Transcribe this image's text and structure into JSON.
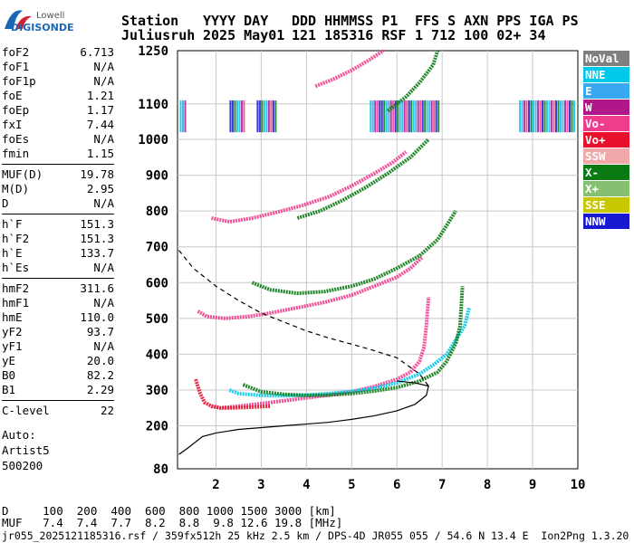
{
  "logo": {
    "top": "Lowell",
    "bottom": "DIGISONDE"
  },
  "header": {
    "labels": [
      "Station",
      "YYYY DAY",
      "DDD HHMMSS P1",
      "FFS S AXN PPS IGA PS"
    ],
    "values": [
      "Juliusruh",
      "2025 May01",
      "121 185316 RSF",
      "1 712 100 02+ 34"
    ]
  },
  "params": [
    [
      {
        "k": "foF2",
        "v": "6.713"
      },
      {
        "k": "foF1",
        "v": "N/A"
      },
      {
        "k": "foF1p",
        "v": "N/A"
      },
      {
        "k": "foE",
        "v": "1.21"
      },
      {
        "k": "foEp",
        "v": "1.17"
      },
      {
        "k": "fxI",
        "v": "7.44"
      },
      {
        "k": "foEs",
        "v": "N/A"
      },
      {
        "k": "fmin",
        "v": "1.15"
      }
    ],
    [
      {
        "k": "MUF(D)",
        "v": "19.78"
      },
      {
        "k": "M(D)",
        "v": "2.95"
      },
      {
        "k": "D",
        "v": "N/A"
      }
    ],
    [
      {
        "k": "h`F",
        "v": "151.3"
      },
      {
        "k": "h`F2",
        "v": "151.3"
      },
      {
        "k": "h`E",
        "v": "133.7"
      },
      {
        "k": "h`Es",
        "v": "N/A"
      }
    ],
    [
      {
        "k": "hmF2",
        "v": "311.6"
      },
      {
        "k": "hmF1",
        "v": "N/A"
      },
      {
        "k": "hmE",
        "v": "110.0"
      },
      {
        "k": "yF2",
        "v": "93.7"
      },
      {
        "k": "yF1",
        "v": "N/A"
      },
      {
        "k": "yE",
        "v": "20.0"
      },
      {
        "k": "B0",
        "v": "82.2"
      },
      {
        "k": "B1",
        "v": "2.29"
      }
    ],
    [
      {
        "k": "C-level",
        "v": "22"
      }
    ]
  ],
  "auto": {
    "line1": "Auto:",
    "line2": "Artist5",
    "line3": "500200"
  },
  "legend": [
    {
      "label": "NoVal",
      "color": "#808080"
    },
    {
      "label": "NNE",
      "color": "#00c8e8"
    },
    {
      "label": "E",
      "color": "#3aa8f0"
    },
    {
      "label": "W",
      "color": "#b0188a"
    },
    {
      "label": "Vo-",
      "color": "#f03c8c"
    },
    {
      "label": "Vo+",
      "color": "#e8102c"
    },
    {
      "label": "SSW",
      "color": "#f0a8a8"
    },
    {
      "label": "X-",
      "color": "#0a7a12"
    },
    {
      "label": "X+",
      "color": "#84c070"
    },
    {
      "label": "SSE",
      "color": "#c8c800"
    },
    {
      "label": "NNW",
      "color": "#1818d0"
    }
  ],
  "footer": {
    "line1": "D     100  200  400  600  800 1000 1500 3000 [km]",
    "line2": "MUF   7.4  7.4  7.7  8.2  8.8  9.8 12.6 19.8 [MHz]",
    "line3": "jr055_2025121185316.rsf / 359fx512h 25 kHz 2.5 km / DPS-4D JR055 055 / 54.6 N 13.4 E  Ion2Png 1.3.20"
  },
  "chart_data": {
    "type": "scatter",
    "x_ticks": [
      2,
      3,
      4,
      5,
      6,
      7,
      8,
      9,
      10
    ],
    "y_ticks": [
      80,
      200,
      300,
      400,
      500,
      600,
      700,
      800,
      900,
      1000,
      1100,
      1250
    ],
    "xlim": [
      1.15,
      10
    ],
    "ylim": [
      80,
      1250
    ],
    "y_scale": "stretched above 1000 km",
    "grid": true,
    "series": [
      {
        "color": "#f03c8c",
        "x": [
          1.9,
          2.1,
          2.5,
          3,
          3.5,
          4,
          4.5,
          5,
          5.5,
          6,
          6.3,
          6.5,
          6.6,
          6.65,
          6.7
        ],
        "y": [
          255,
          250,
          255,
          262,
          270,
          278,
          286,
          295,
          310,
          330,
          350,
          380,
          420,
          480,
          560
        ]
      },
      {
        "color": "#00c8e8",
        "x": [
          2.3,
          2.5,
          3,
          3.5,
          4,
          4.5,
          5,
          5.5,
          6,
          6.5,
          6.8,
          7.1,
          7.3,
          7.5,
          7.6
        ],
        "y": [
          300,
          290,
          285,
          284,
          286,
          290,
          296,
          305,
          320,
          345,
          370,
          400,
          440,
          480,
          530
        ]
      },
      {
        "color": "#0a7a12",
        "x": [
          2.6,
          3,
          3.5,
          4,
          4.5,
          5,
          5.5,
          6,
          6.5,
          6.9,
          7.1,
          7.3,
          7.4,
          7.45
        ],
        "y": [
          315,
          295,
          288,
          285,
          286,
          290,
          297,
          307,
          325,
          350,
          380,
          430,
          480,
          590
        ]
      },
      {
        "color": "#e8102c",
        "x": [
          1.55,
          1.65,
          1.75,
          1.9,
          2.1,
          2.4,
          2.8,
          3.2
        ],
        "y": [
          330,
          290,
          265,
          255,
          250,
          250,
          252,
          255
        ]
      },
      {
        "color": "#f03c8c",
        "x": [
          1.6,
          1.8,
          2.2,
          2.7,
          3.2,
          3.8,
          4.4,
          5,
          5.5,
          6,
          6.3,
          6.55
        ],
        "y": [
          520,
          505,
          500,
          505,
          515,
          530,
          545,
          565,
          590,
          615,
          640,
          670
        ]
      },
      {
        "color": "#0a7a12",
        "x": [
          2.8,
          3.2,
          3.8,
          4.4,
          5,
          5.5,
          6,
          6.5,
          6.9,
          7.1,
          7.3
        ],
        "y": [
          600,
          580,
          570,
          575,
          590,
          610,
          640,
          675,
          720,
          760,
          800
        ]
      },
      {
        "color": "#f03c8c",
        "x": [
          1.9,
          2.3,
          2.8,
          3.3,
          3.9,
          4.5,
          5,
          5.5,
          5.9,
          6.2
        ],
        "y": [
          780,
          770,
          780,
          795,
          815,
          840,
          870,
          905,
          935,
          965
        ]
      },
      {
        "color": "#0a7a12",
        "x": [
          3.8,
          4.3,
          4.8,
          5.3,
          5.8,
          6.3,
          6.7
        ],
        "y": [
          780,
          800,
          830,
          865,
          905,
          950,
          1000
        ]
      },
      {
        "color": "#f03c8c",
        "x": [
          4.2,
          4.6,
          5,
          5.4,
          5.7
        ],
        "y": [
          1150,
          1170,
          1195,
          1225,
          1250
        ]
      },
      {
        "color": "#0a7a12",
        "x": [
          5.8,
          6.2,
          6.5,
          6.8,
          6.9
        ],
        "y": [
          1080,
          1120,
          1160,
          1210,
          1250
        ]
      }
    ],
    "profile_solid": {
      "x": [
        1.18,
        1.4,
        1.7,
        2.0,
        2.5,
        3.0,
        3.5,
        4.0,
        4.5,
        5.0,
        5.5,
        6.0,
        6.4,
        6.65,
        6.7,
        6.4,
        6.0
      ],
      "y": [
        120,
        140,
        170,
        180,
        190,
        195,
        200,
        205,
        210,
        218,
        228,
        242,
        260,
        285,
        311,
        320,
        325
      ]
    },
    "profile_dashed": {
      "x": [
        1.18,
        1.5,
        2.0,
        2.5,
        3.0,
        3.5,
        4.0,
        4.5,
        5.0,
        5.5,
        6.0,
        6.5,
        6.7
      ],
      "y": [
        690,
        640,
        590,
        550,
        515,
        490,
        465,
        445,
        428,
        410,
        390,
        345,
        311
      ]
    }
  }
}
